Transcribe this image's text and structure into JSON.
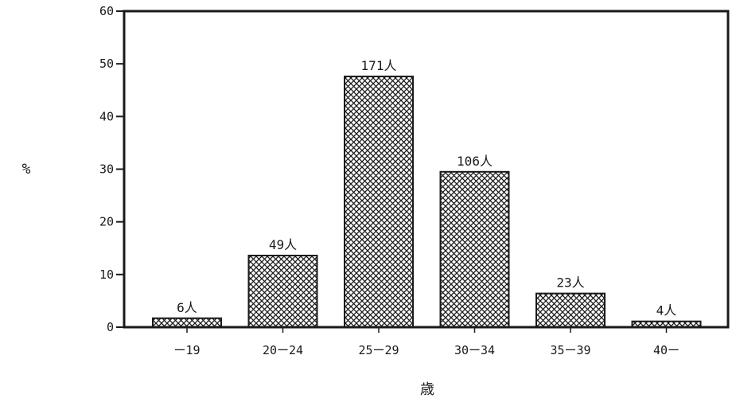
{
  "chart_data": {
    "type": "bar",
    "categories": [
      "ー19",
      "20ー24",
      "25ー29",
      "30ー34",
      "35ー39",
      "40ー"
    ],
    "values": [
      1.7,
      13.6,
      47.6,
      29.5,
      6.4,
      1.1
    ],
    "data_labels": [
      "6人",
      "49人",
      "171人",
      "106人",
      "23人",
      "4人"
    ],
    "ylabel": "%",
    "xlabel": "歳",
    "ylim": [
      0,
      60
    ],
    "yticks": [
      0,
      10,
      20,
      30,
      40,
      50,
      60
    ],
    "grid": false,
    "bar_pattern": "crosshatch",
    "colors": {
      "ink": "#1a1a1a",
      "background": "#ffffff"
    }
  }
}
